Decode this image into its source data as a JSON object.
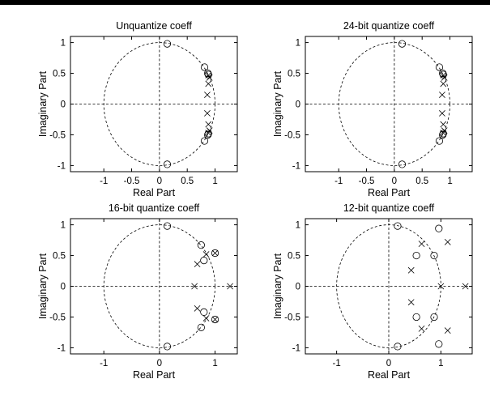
{
  "chart_data": [
    {
      "type": "scatter",
      "title": "Unquantize coeff",
      "xlabel": "Real Part",
      "ylabel": "Imaginary Part",
      "xlim": [
        -1.6,
        1.4
      ],
      "ylim": [
        -1.1,
        1.1
      ],
      "xticks": [
        -1,
        -0.5,
        0,
        0.5,
        1
      ],
      "yticks": [
        -1,
        -0.5,
        0,
        0.5,
        1
      ],
      "unit_circle": true,
      "zeros": [
        [
          0.14,
          0.98
        ],
        [
          0.81,
          0.6
        ],
        [
          0.87,
          0.5
        ],
        [
          0.88,
          0.48
        ],
        [
          0.14,
          -0.98
        ],
        [
          0.81,
          -0.6
        ],
        [
          0.87,
          -0.5
        ],
        [
          0.88,
          -0.48
        ]
      ],
      "poles": [
        [
          0.88,
          0.47
        ],
        [
          0.9,
          0.43
        ],
        [
          0.88,
          0.33
        ],
        [
          0.86,
          0.15
        ],
        [
          0.86,
          -0.15
        ],
        [
          0.88,
          -0.33
        ],
        [
          0.9,
          -0.43
        ],
        [
          0.88,
          -0.47
        ]
      ]
    },
    {
      "type": "scatter",
      "title": "24-bit quantize coeff",
      "xlabel": "Real Part",
      "ylabel": "Imaginary Part",
      "xlim": [
        -1.6,
        1.4
      ],
      "ylim": [
        -1.1,
        1.1
      ],
      "xticks": [
        -1,
        -0.5,
        0,
        0.5,
        1
      ],
      "yticks": [
        -1,
        -0.5,
        0,
        0.5,
        1
      ],
      "unit_circle": true,
      "zeros": [
        [
          0.14,
          0.98
        ],
        [
          0.81,
          0.6
        ],
        [
          0.87,
          0.5
        ],
        [
          0.88,
          0.48
        ],
        [
          0.14,
          -0.98
        ],
        [
          0.81,
          -0.6
        ],
        [
          0.87,
          -0.5
        ],
        [
          0.88,
          -0.48
        ]
      ],
      "poles": [
        [
          0.88,
          0.47
        ],
        [
          0.9,
          0.43
        ],
        [
          0.88,
          0.33
        ],
        [
          0.86,
          0.15
        ],
        [
          0.86,
          -0.15
        ],
        [
          0.88,
          -0.33
        ],
        [
          0.9,
          -0.43
        ],
        [
          0.88,
          -0.47
        ]
      ]
    },
    {
      "type": "scatter",
      "title": "16-bit quantize coeff",
      "xlabel": "Real Part",
      "ylabel": "Imaginary Part",
      "xlim": [
        -1.6,
        1.4
      ],
      "ylim": [
        -1.1,
        1.1
      ],
      "xticks": [
        -1,
        0,
        1
      ],
      "yticks": [
        -1,
        -0.5,
        0,
        0.5,
        1
      ],
      "unit_circle": true,
      "zeros": [
        [
          0.14,
          0.98
        ],
        [
          0.75,
          0.67
        ],
        [
          0.8,
          0.42
        ],
        [
          1.0,
          0.54
        ],
        [
          0.14,
          -0.98
        ],
        [
          0.75,
          -0.67
        ],
        [
          0.8,
          -0.42
        ],
        [
          1.0,
          -0.54
        ]
      ],
      "poles": [
        [
          0.68,
          0.36
        ],
        [
          0.84,
          0.52
        ],
        [
          1.0,
          0.54
        ],
        [
          0.63,
          0.0
        ],
        [
          1.27,
          0.0
        ],
        [
          0.68,
          -0.36
        ],
        [
          0.84,
          -0.52
        ],
        [
          1.0,
          -0.54
        ]
      ]
    },
    {
      "type": "scatter",
      "title": "12-bit quantize coeff",
      "xlabel": "Real Part",
      "ylabel": "Imaginary Part",
      "xlim": [
        -1.6,
        1.6
      ],
      "ylim": [
        -1.1,
        1.1
      ],
      "xticks": [
        -1,
        0,
        1
      ],
      "yticks": [
        -1,
        -0.5,
        0,
        0.5,
        1
      ],
      "unit_circle": true,
      "zeros": [
        [
          0.17,
          0.98
        ],
        [
          0.53,
          0.5
        ],
        [
          0.87,
          0.5
        ],
        [
          0.96,
          0.94
        ],
        [
          0.17,
          -0.98
        ],
        [
          0.53,
          -0.5
        ],
        [
          0.87,
          -0.5
        ],
        [
          0.96,
          -0.94
        ]
      ],
      "poles": [
        [
          0.43,
          0.26
        ],
        [
          0.63,
          0.69
        ],
        [
          1.13,
          0.72
        ],
        [
          1.0,
          0.0
        ],
        [
          1.47,
          0.0
        ],
        [
          0.43,
          -0.26
        ],
        [
          0.63,
          -0.69
        ],
        [
          1.13,
          -0.72
        ]
      ]
    }
  ]
}
